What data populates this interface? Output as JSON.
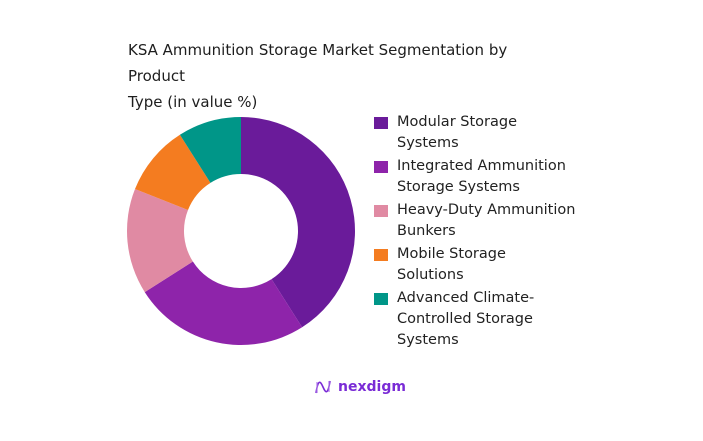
{
  "chart_data": {
    "type": "pie",
    "variant": "donut",
    "title": "KSA Ammunition Storage Market Segmentation by Product Type (in value %)",
    "categories": [
      "Modular Storage Systems",
      "Integrated Ammunition Storage Systems",
      "Heavy-Duty Ammunition Bunkers",
      "Mobile Storage Solutions",
      "Advanced Climate-Controlled Storage Systems"
    ],
    "values": [
      41,
      25,
      15,
      10,
      9
    ],
    "colors": [
      "#6a1b9a",
      "#8e24aa",
      "#e08aa3",
      "#f47c20",
      "#009688"
    ],
    "legend_position": "right",
    "start_angle": "12 o'clock, clockwise"
  },
  "title": {
    "line1": "KSA Ammunition Storage Market Segmentation by Product",
    "line2": "Type (in value %)"
  },
  "legend": [
    {
      "label": "Modular Storage Systems",
      "lines": [
        "Modular Storage",
        "Systems"
      ],
      "color": "#6a1b9a"
    },
    {
      "label": "Integrated Ammunition Storage Systems",
      "lines": [
        "Integrated Ammunition",
        "Storage Systems"
      ],
      "color": "#8e24aa"
    },
    {
      "label": "Heavy-Duty Ammunition Bunkers",
      "lines": [
        "Heavy-Duty Ammunition",
        "Bunkers"
      ],
      "color": "#e08aa3"
    },
    {
      "label": "Mobile Storage Solutions",
      "lines": [
        "Mobile Storage",
        "Solutions"
      ],
      "color": "#f47c20"
    },
    {
      "label": "Advanced Climate-Controlled Storage Systems",
      "lines": [
        "Advanced Climate-",
        "Controlled Storage",
        "Systems"
      ],
      "color": "#009688"
    }
  ],
  "brand": {
    "name": "nexdigm",
    "color": "#7a2bd6"
  }
}
